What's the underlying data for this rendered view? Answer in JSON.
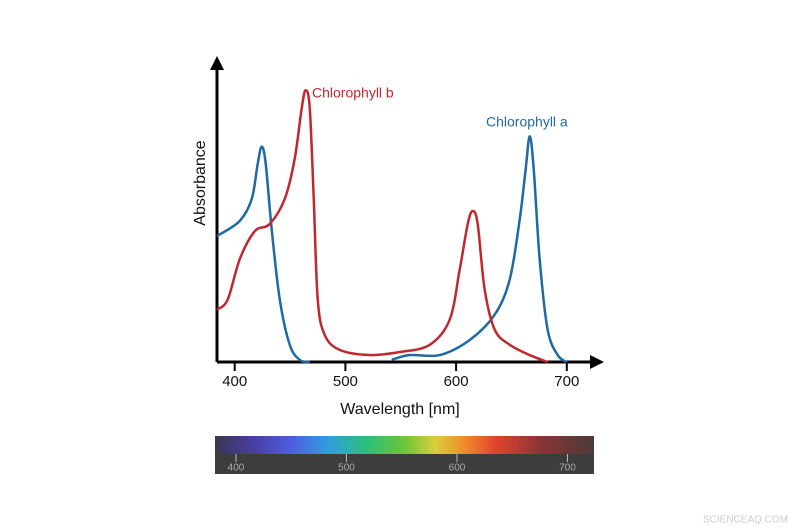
{
  "chart_data": {
    "type": "line",
    "x_label": "Wavelength [nm]",
    "y_label": "Absorbance",
    "xlim": [
      384,
      730
    ],
    "xticks": [
      400,
      500,
      600,
      700
    ],
    "ylim": [
      0,
      1
    ],
    "series": [
      {
        "name": "Chlorophyll a",
        "color": "#1f6aa5",
        "x": [
          384,
          404.5,
          415.4,
          420.8,
          424.4,
          428,
          433.4,
          440.7,
          449.7,
          458.7,
          467.8,
          505,
          541.8,
          558.1,
          585.2,
          612.3,
          634.9,
          648.4,
          657.5,
          662.9,
          666.5,
          670.1,
          675.5,
          682.7,
          691.8,
          699.9
        ],
        "values": [
          0.417,
          0.467,
          0.54,
          0.657,
          0.713,
          0.657,
          0.44,
          0.207,
          0.057,
          0.007,
          0,
          null,
          0.007,
          0.023,
          0.023,
          0.073,
          0.157,
          0.273,
          0.473,
          0.64,
          0.747,
          0.64,
          0.34,
          0.107,
          0.023,
          0
        ]
      },
      {
        "name": "Chlorophyll b",
        "color": "#c0282d",
        "x": [
          384,
          393.7,
          404.5,
          418.1,
          431.6,
          445.2,
          454.2,
          460.5,
          464.1,
          467.8,
          471.4,
          475.0,
          481.3,
          494.9,
          522.0,
          549.1,
          576.2,
          594.2,
          603.3,
          610.5,
          615.0,
          619.5,
          625.8,
          634.9,
          648.4,
          666.5,
          682.7
        ],
        "values": [
          0.173,
          0.207,
          0.34,
          0.433,
          0.457,
          0.54,
          0.673,
          0.84,
          0.9,
          0.84,
          0.54,
          0.207,
          0.09,
          0.04,
          0.023,
          0.033,
          0.057,
          0.14,
          0.307,
          0.457,
          0.5,
          0.457,
          0.24,
          0.107,
          0.057,
          0.023,
          0
        ]
      }
    ],
    "spectrum": {
      "xlim": [
        381,
        724
      ],
      "xticks": [
        400,
        500,
        600,
        700
      ]
    },
    "source": "SCIENCEAQ.COM"
  }
}
